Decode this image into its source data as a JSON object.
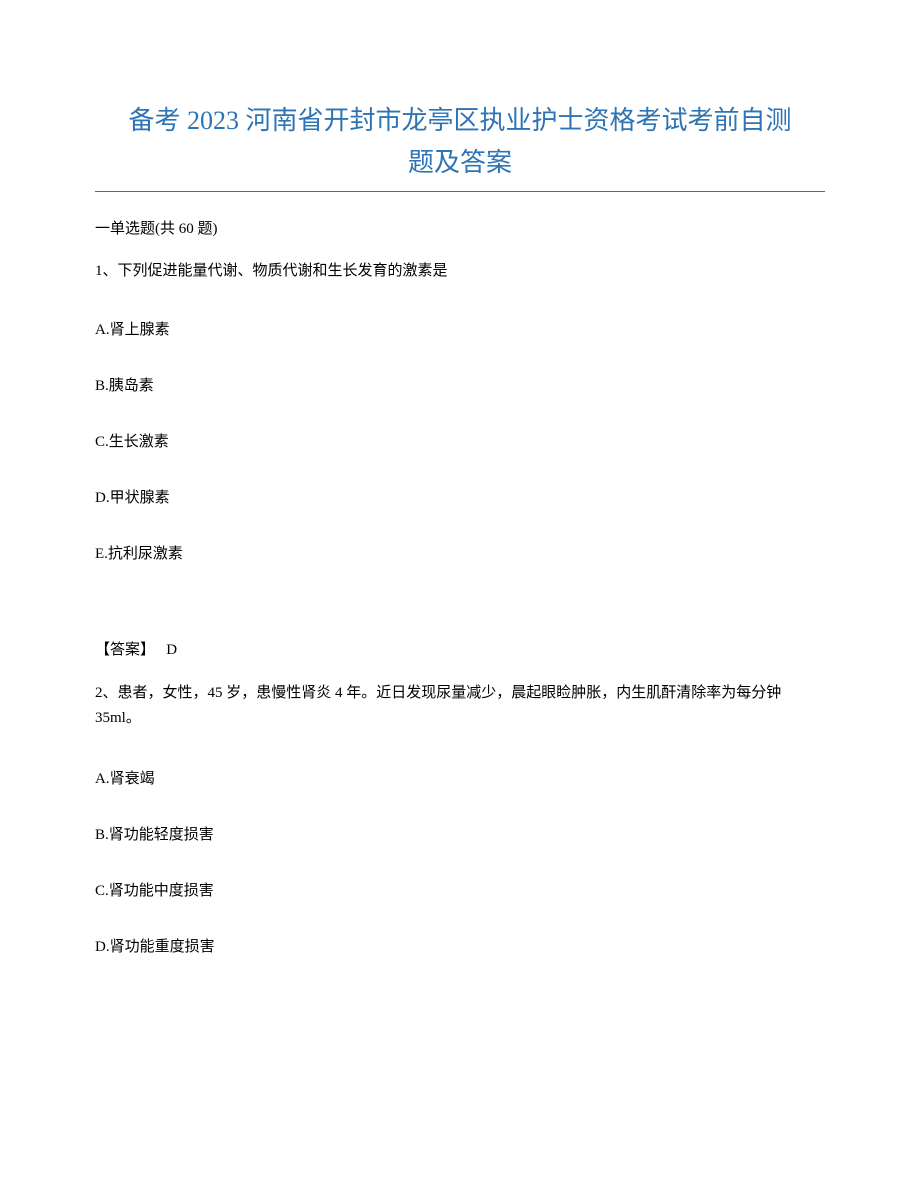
{
  "title": {
    "line1": "备考 2023 河南省开封市龙亭区执业护士资格考试考前自测",
    "line2": "题及答案",
    "color": "#2e74b5",
    "fontsize": 26
  },
  "divider": {
    "color": "#2e74b5"
  },
  "section": {
    "prefix": "一",
    "label": "单选题(共 60 题)"
  },
  "question1": {
    "number": "1、",
    "text": "下列促进能量代谢、物质代谢和生长发育的激素是",
    "options": {
      "a": "A.肾上腺素",
      "b": "B.胰岛素",
      "c": "C.生长激素",
      "d": "D.甲状腺素",
      "e": "E.抗利尿激素"
    },
    "answer_label": "【答案】",
    "answer_value": "D"
  },
  "question2": {
    "number": "2、",
    "text": "患者，女性，45 岁，患慢性肾炎 4 年。近日发现尿量减少，晨起眼睑肿胀，内生肌酐清除率为每分钟 35ml。",
    "options": {
      "a": "A.肾衰竭",
      "b": "B.肾功能轻度损害",
      "c": "C.肾功能中度损害",
      "d": "D.肾功能重度损害"
    }
  },
  "colors": {
    "text": "#000000",
    "background": "#ffffff"
  }
}
